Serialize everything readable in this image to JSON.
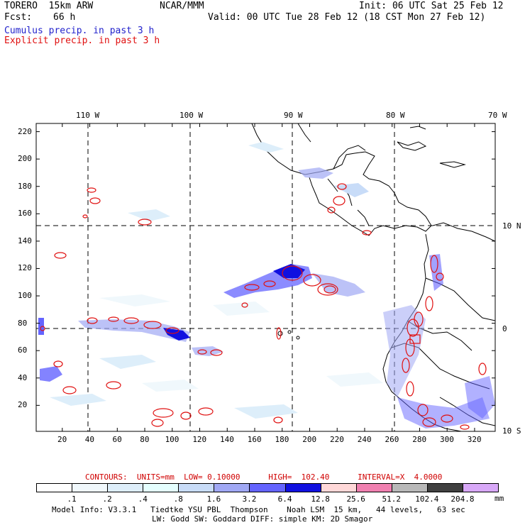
{
  "header": {
    "model": "TORERO  15km ARW",
    "org": "NCAR/MMM",
    "init": "Init: 06 UTC Sat 25 Feb 12",
    "fcst_label": "Fcst:",
    "fcst_value": "66 h",
    "valid": "Valid: 00 UTC Tue 28 Feb 12 (18 CST Mon 27 Feb 12)",
    "cumulus": "Cumulus precip. in past 3 h",
    "explicit": "Explicit precip. in past 3 h"
  },
  "map": {
    "lon_labels": [
      "110 W",
      "100 W",
      "90 W",
      "80 W",
      "70 W"
    ],
    "lat_labels": [
      "10 N",
      "0",
      "10 S"
    ],
    "y_ticks": [
      "220",
      "200",
      "180",
      "160",
      "140",
      "120",
      "100",
      "80",
      "60",
      "40",
      "20"
    ],
    "x_ticks": [
      "20",
      "40",
      "60",
      "80",
      "100",
      "120",
      "140",
      "160",
      "180",
      "200",
      "220",
      "240",
      "260",
      "280",
      "300",
      "320"
    ],
    "x_range": [
      1,
      335
    ],
    "y_range": [
      1,
      226
    ]
  },
  "contours_text": "CONTOURS:  UNITS=mm  LOW= 0.10000      HIGH=  102.40      INTERVAL=X  4.0000",
  "legend": {
    "labels": [
      ".1",
      ".2",
      ".4",
      ".8",
      "1.6",
      "3.2",
      "6.4",
      "12.8",
      "25.6",
      "51.2",
      "102.4",
      "204.8"
    ],
    "unit": "mm",
    "colors": [
      "#ffffff",
      "#f0f8fc",
      "#ddeefa",
      "#e4ffff",
      "#c8dcf8",
      "#a0a8f4",
      "#6464ff",
      "#1010e0",
      "#ffd8d8",
      "#f080b0",
      "#b8b8b8",
      "#404040",
      "#d8a8f8"
    ]
  },
  "footer": {
    "line1": "Model Info: V3.3.1   Tiedtke YSU PBL  Thompson    Noah LSM  15 km,   44 levels,   63 sec",
    "line2": "LW: Godd SW: Goddard DIFF: simple KM: 2D Smagor"
  }
}
